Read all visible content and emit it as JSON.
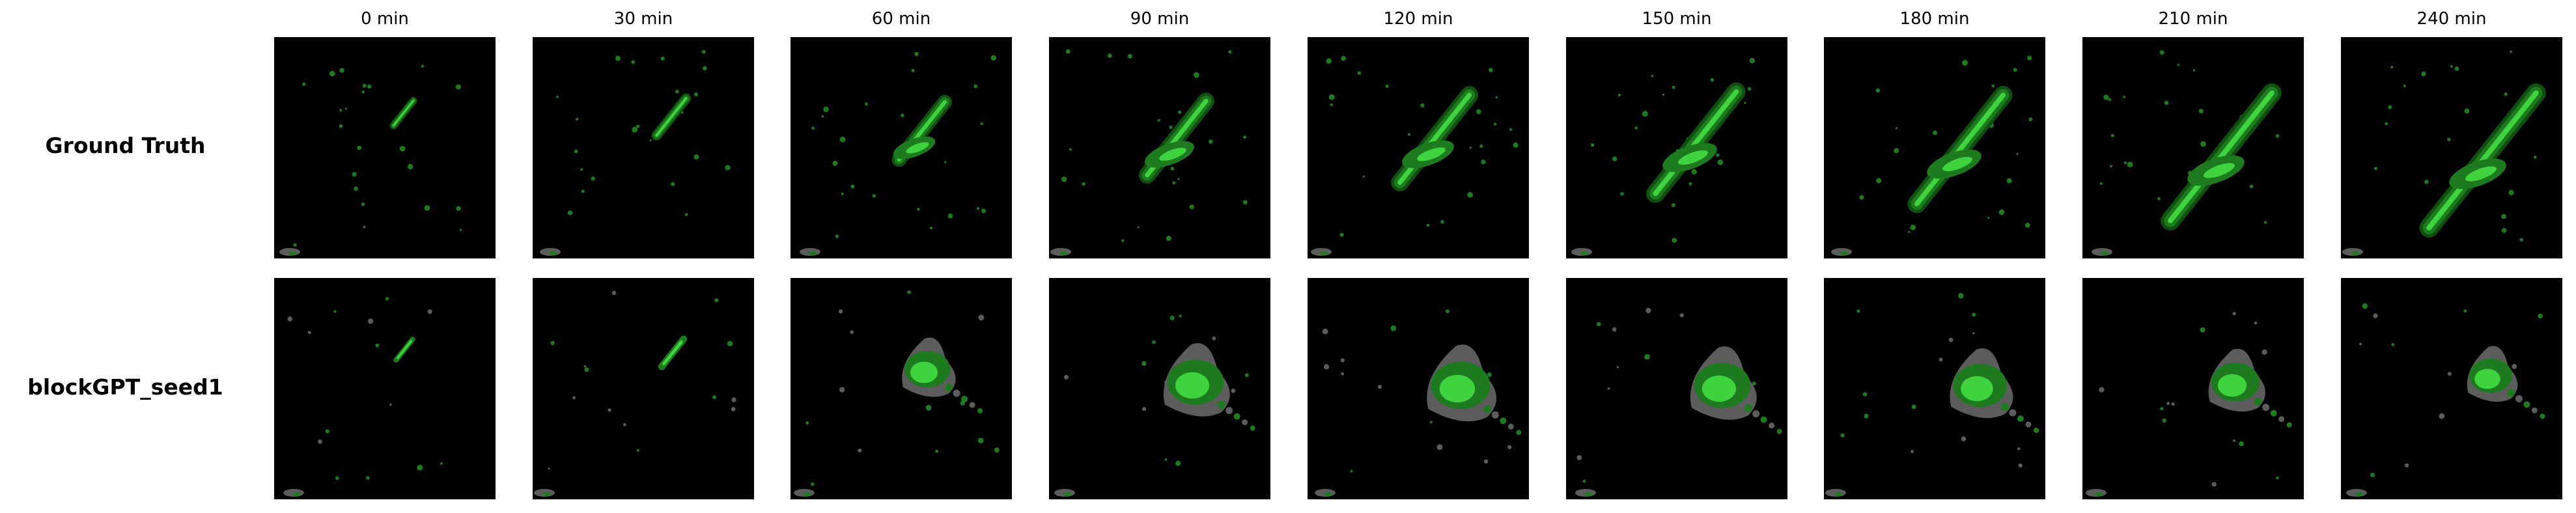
{
  "figure": {
    "columns": [
      "0 min",
      "30 min",
      "60 min",
      "90 min",
      "120 min",
      "150 min",
      "180 min",
      "210 min",
      "240 min"
    ],
    "rows": [
      "Ground Truth",
      "blockGPT_seed1"
    ],
    "colors": {
      "background": "#000000",
      "rain_light": "#1e7a1e",
      "rain_core": "#3fd43f",
      "rain_edge": "#0f4f0f",
      "prediction_blur": "#5c5c5c"
    }
  }
}
